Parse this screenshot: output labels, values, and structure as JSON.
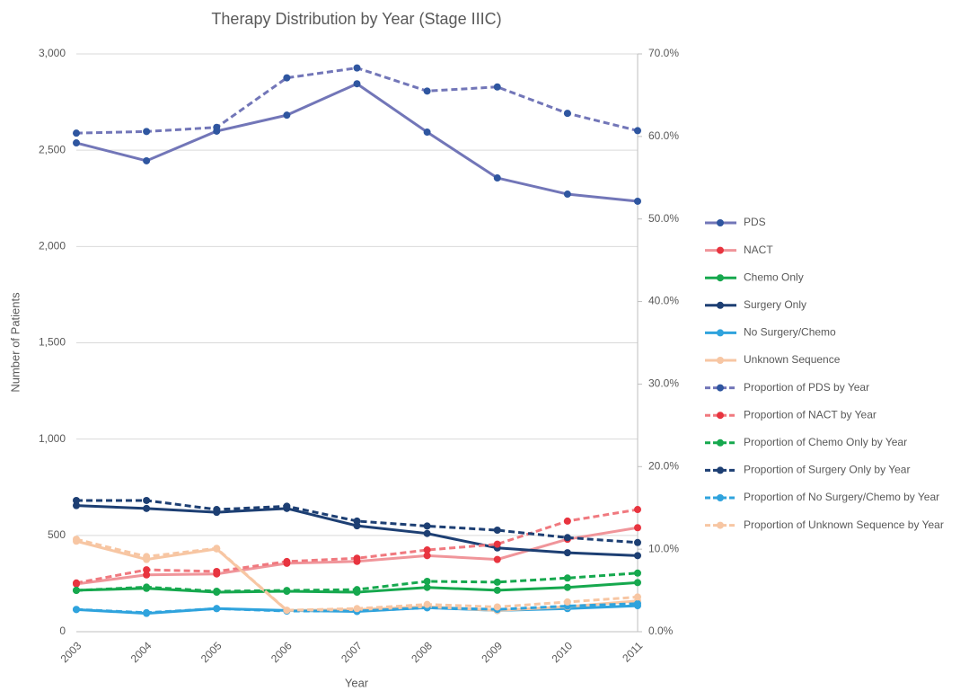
{
  "chart_data": {
    "type": "line",
    "title": "Therapy Distribution by Year (Stage IIIC)",
    "x_label": "Year",
    "y_label": "Number of Patients",
    "categories": [
      "2003",
      "2004",
      "2005",
      "2006",
      "2007",
      "2008",
      "2009",
      "2010",
      "2011"
    ],
    "ylim": [
      0,
      3000
    ],
    "yticks": [
      0,
      500,
      {
        "value": 1000,
        "label": "1,000"
      },
      {
        "value": 1500,
        "label": "1,500"
      },
      {
        "value": 2000,
        "label": "2,000"
      },
      {
        "value": 2500,
        "label": "2,500"
      },
      {
        "value": 3000,
        "label": "3,000"
      }
    ],
    "y2lim": [
      0,
      70
    ],
    "y2ticks": [
      {
        "value": 0,
        "label": "0.0%"
      },
      {
        "value": 10,
        "label": "10.0%"
      },
      {
        "value": 20,
        "label": "20.0%"
      },
      {
        "value": 30,
        "label": "30.0%"
      },
      {
        "value": 40,
        "label": "40.0%"
      },
      {
        "value": 50,
        "label": "50.0%"
      },
      {
        "value": 60,
        "label": "60.0%"
      },
      {
        "value": 70,
        "label": "70.0%"
      }
    ],
    "grid": true,
    "legend": "right",
    "series": [
      {
        "name": "PDS",
        "color": "#7276b8",
        "marker": "#2f56a0",
        "values": [
          2538,
          2445,
          2599,
          2682,
          2845,
          2594,
          2356,
          2272,
          2235
        ]
      },
      {
        "name": "NACT",
        "color": "#f0959a",
        "marker": "#e8343f",
        "values": [
          248,
          295,
          300,
          355,
          365,
          395,
          375,
          480,
          540
        ]
      },
      {
        "name": "Chemo Only",
        "color": "#16a84e",
        "marker": "#16a84e",
        "values": [
          215,
          225,
          205,
          210,
          205,
          230,
          215,
          230,
          255
        ]
      },
      {
        "name": "Surgery Only",
        "color": "#1d3f73",
        "marker": "#1d3f73",
        "values": [
          655,
          640,
          620,
          640,
          550,
          510,
          435,
          410,
          395
        ]
      },
      {
        "name": "No Surgery/Chemo",
        "color": "#2fa3dd",
        "marker": "#2fa3dd",
        "values": [
          115,
          95,
          120,
          110,
          105,
          125,
          110,
          120,
          135
        ]
      },
      {
        "name": "Unknown Sequence",
        "color": "#f7c6a3",
        "marker": "#f7c6a3",
        "values": [
          470,
          375,
          430,
          110,
          115,
          130,
          110,
          130,
          160
        ]
      },
      {
        "name": "Proportion of PDS by Year",
        "color": "#7276b8",
        "marker": "#2f56a0",
        "dashed": true,
        "axis": "y2",
        "values": [
          60.4,
          60.6,
          61.1,
          67.1,
          68.3,
          65.5,
          66.0,
          62.8,
          60.7
        ]
      },
      {
        "name": "Proportion of NACT by Year",
        "color": "#f0797f",
        "marker": "#e8343f",
        "dashed": true,
        "axis": "y2",
        "values": [
          5.9,
          7.5,
          7.3,
          8.5,
          8.9,
          9.9,
          10.6,
          13.4,
          14.8
        ]
      },
      {
        "name": "Proportion of Chemo Only by Year",
        "color": "#16a84e",
        "marker": "#16a84e",
        "dashed": true,
        "axis": "y2",
        "values": [
          5.0,
          5.4,
          4.9,
          5.0,
          5.1,
          6.1,
          6.0,
          6.5,
          7.1
        ]
      },
      {
        "name": "Proportion of Surgery Only by Year",
        "color": "#1d3f73",
        "marker": "#1d3f73",
        "dashed": true,
        "axis": "y2",
        "values": [
          15.9,
          15.9,
          14.8,
          15.2,
          13.4,
          12.8,
          12.3,
          11.4,
          10.8
        ]
      },
      {
        "name": "Proportion of No Surgery/Chemo by Year",
        "color": "#2fa3dd",
        "marker": "#2fa3dd",
        "dashed": true,
        "axis": "y2",
        "values": [
          2.7,
          2.3,
          2.8,
          2.5,
          2.5,
          2.9,
          2.7,
          3.1,
          3.4
        ]
      },
      {
        "name": "Proportion of Unknown Sequence by Year",
        "color": "#f7c6a3",
        "marker": "#f7c6a3",
        "dashed": true,
        "axis": "y2",
        "values": [
          11.2,
          9.1,
          10.1,
          2.6,
          2.8,
          3.3,
          3.0,
          3.6,
          4.2
        ]
      }
    ]
  }
}
